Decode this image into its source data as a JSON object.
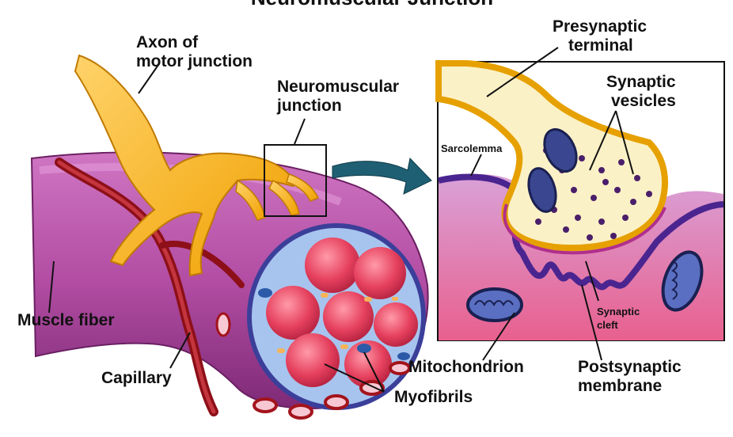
{
  "title_partial": "Neuromuscular Junction",
  "labels": {
    "axon_line1": "Axon of",
    "axon_line2": "motor junction",
    "nmj_line1": "Neuromuscular",
    "nmj_line2": "junction",
    "presynaptic_line1": "Presynaptic",
    "presynaptic_line2": "terminal",
    "vesicles_line1": "Synaptic",
    "vesicles_line2": "vesicles",
    "sarcolemma": "Sarcolemma",
    "muscle_fiber": "Muscle fiber",
    "capillary": "Capillary",
    "cleft_line1": "Synaptic",
    "cleft_line2": "cleft",
    "mitochondrion": "Mitochondrion",
    "postsynaptic_line1": "Postsynaptic",
    "postsynaptic_line2": "membrane",
    "myofibrils": "Myofibrils"
  },
  "colors": {
    "muscle": "#b04fa0",
    "muscle_light": "#d27cc6",
    "axon": "#f2a900",
    "axon_light": "#ffd76a",
    "capillary": "#a3141c",
    "cross_section": "#aac6ee",
    "myofibril": "#e84a6a",
    "arrow": "#1f5f73",
    "membrane": "#5a2a8a",
    "vesicle": "#4a1f6a",
    "mito": "#2e3a78",
    "terminal_fill": "#fbf1c6",
    "cleft": "#e0456f"
  }
}
